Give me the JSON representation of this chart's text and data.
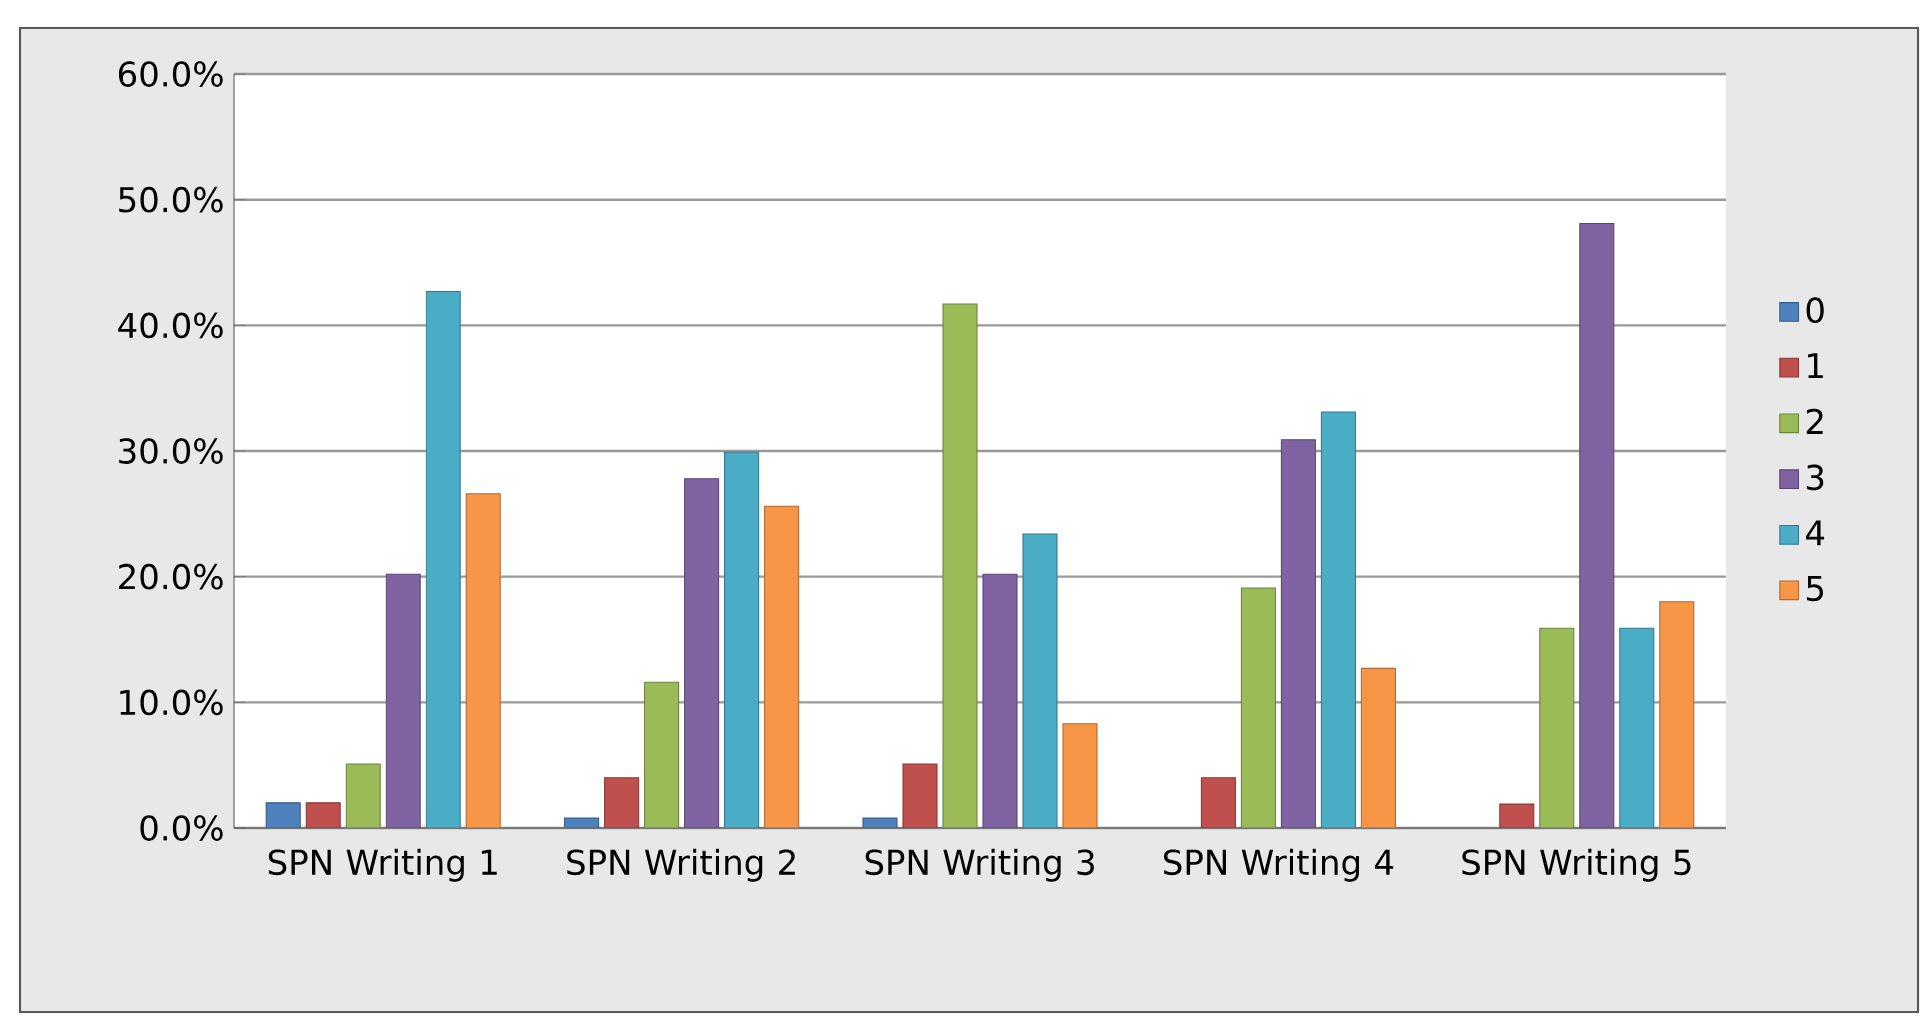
{
  "chart_data": {
    "type": "bar",
    "categories": [
      "SPN Writing 1",
      "SPN Writing 2",
      "SPN Writing 3",
      "SPN Writing 4",
      "SPN Writing 5"
    ],
    "series": [
      {
        "name": "0",
        "color": "#4f81bd",
        "values": [
          2.0,
          0.8,
          0.8,
          null,
          null
        ]
      },
      {
        "name": "1",
        "color": "#c0504d",
        "values": [
          2.0,
          4.0,
          5.1,
          4.0,
          1.9
        ]
      },
      {
        "name": "2",
        "color": "#9bbb59",
        "values": [
          5.1,
          11.6,
          41.7,
          19.1,
          15.9
        ]
      },
      {
        "name": "3",
        "color": "#8064a2",
        "values": [
          20.2,
          27.8,
          20.2,
          30.9,
          48.1
        ]
      },
      {
        "name": "4",
        "color": "#4bacc6",
        "values": [
          42.7,
          29.9,
          23.4,
          33.1,
          15.9
        ]
      },
      {
        "name": "5",
        "color": "#f79646",
        "values": [
          26.6,
          25.6,
          8.3,
          12.7,
          18.0
        ]
      }
    ],
    "ylim": [
      0,
      60
    ],
    "yticks": [
      {
        "value": 0,
        "label": "0.0%"
      },
      {
        "value": 10,
        "label": "10.0%"
      },
      {
        "value": 20,
        "label": "20.0%"
      },
      {
        "value": 30,
        "label": "30.0%"
      },
      {
        "value": 40,
        "label": "40.0%"
      },
      {
        "value": 50,
        "label": "50.0%"
      },
      {
        "value": 60,
        "label": "60.0%"
      }
    ],
    "grid": "y",
    "legend": "right"
  }
}
